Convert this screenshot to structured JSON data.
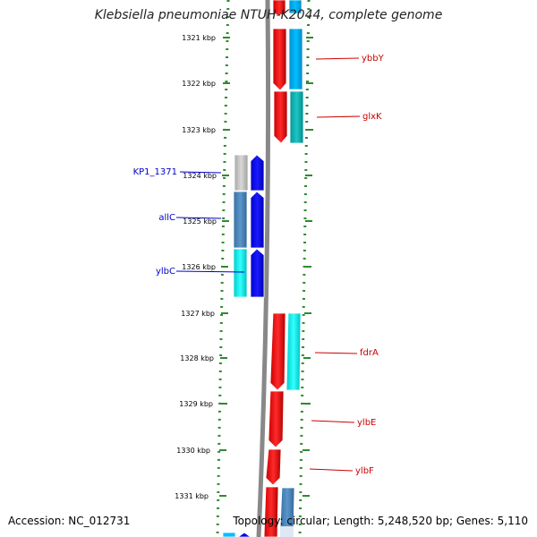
{
  "title": "Klebsiella pneumoniae NTUH-K2044, complete genome",
  "footer": {
    "accession": "Accession: NC_012731",
    "topology": "Topology: circular; Length: 5,248,520 bp; Genes: 5,110"
  },
  "colors": {
    "backbone": "#888888",
    "forward_label": "#0000cc",
    "reverse_label": "#cc0000",
    "ticks": "#2e8b2e"
  },
  "scale": {
    "unit": "kbp",
    "ticks": [
      "1321 kbp",
      "1322 kbp",
      "1323 kbp",
      "1324 kbp",
      "1325 kbp",
      "1326 kbp",
      "1327 kbp",
      "1328 kbp",
      "1329 kbp",
      "1330 kbp",
      "1331 kbp"
    ]
  },
  "genes": {
    "left": [
      {
        "label": "KP1_1371",
        "color": "#c0c0c0"
      },
      {
        "label": "allC",
        "color": "#4682b4"
      },
      {
        "label": "ylbC",
        "color": "#00e5ee"
      }
    ],
    "right": [
      {
        "label": "ybbY",
        "color": "#009acd"
      },
      {
        "label": "glxK",
        "color": "#20b2aa"
      },
      {
        "label": "fdrA",
        "color": "#00e5ee"
      },
      {
        "label": "ylbE",
        "color": "#ff0000"
      },
      {
        "label": "ylbF",
        "color": "#ff0000"
      }
    ]
  }
}
